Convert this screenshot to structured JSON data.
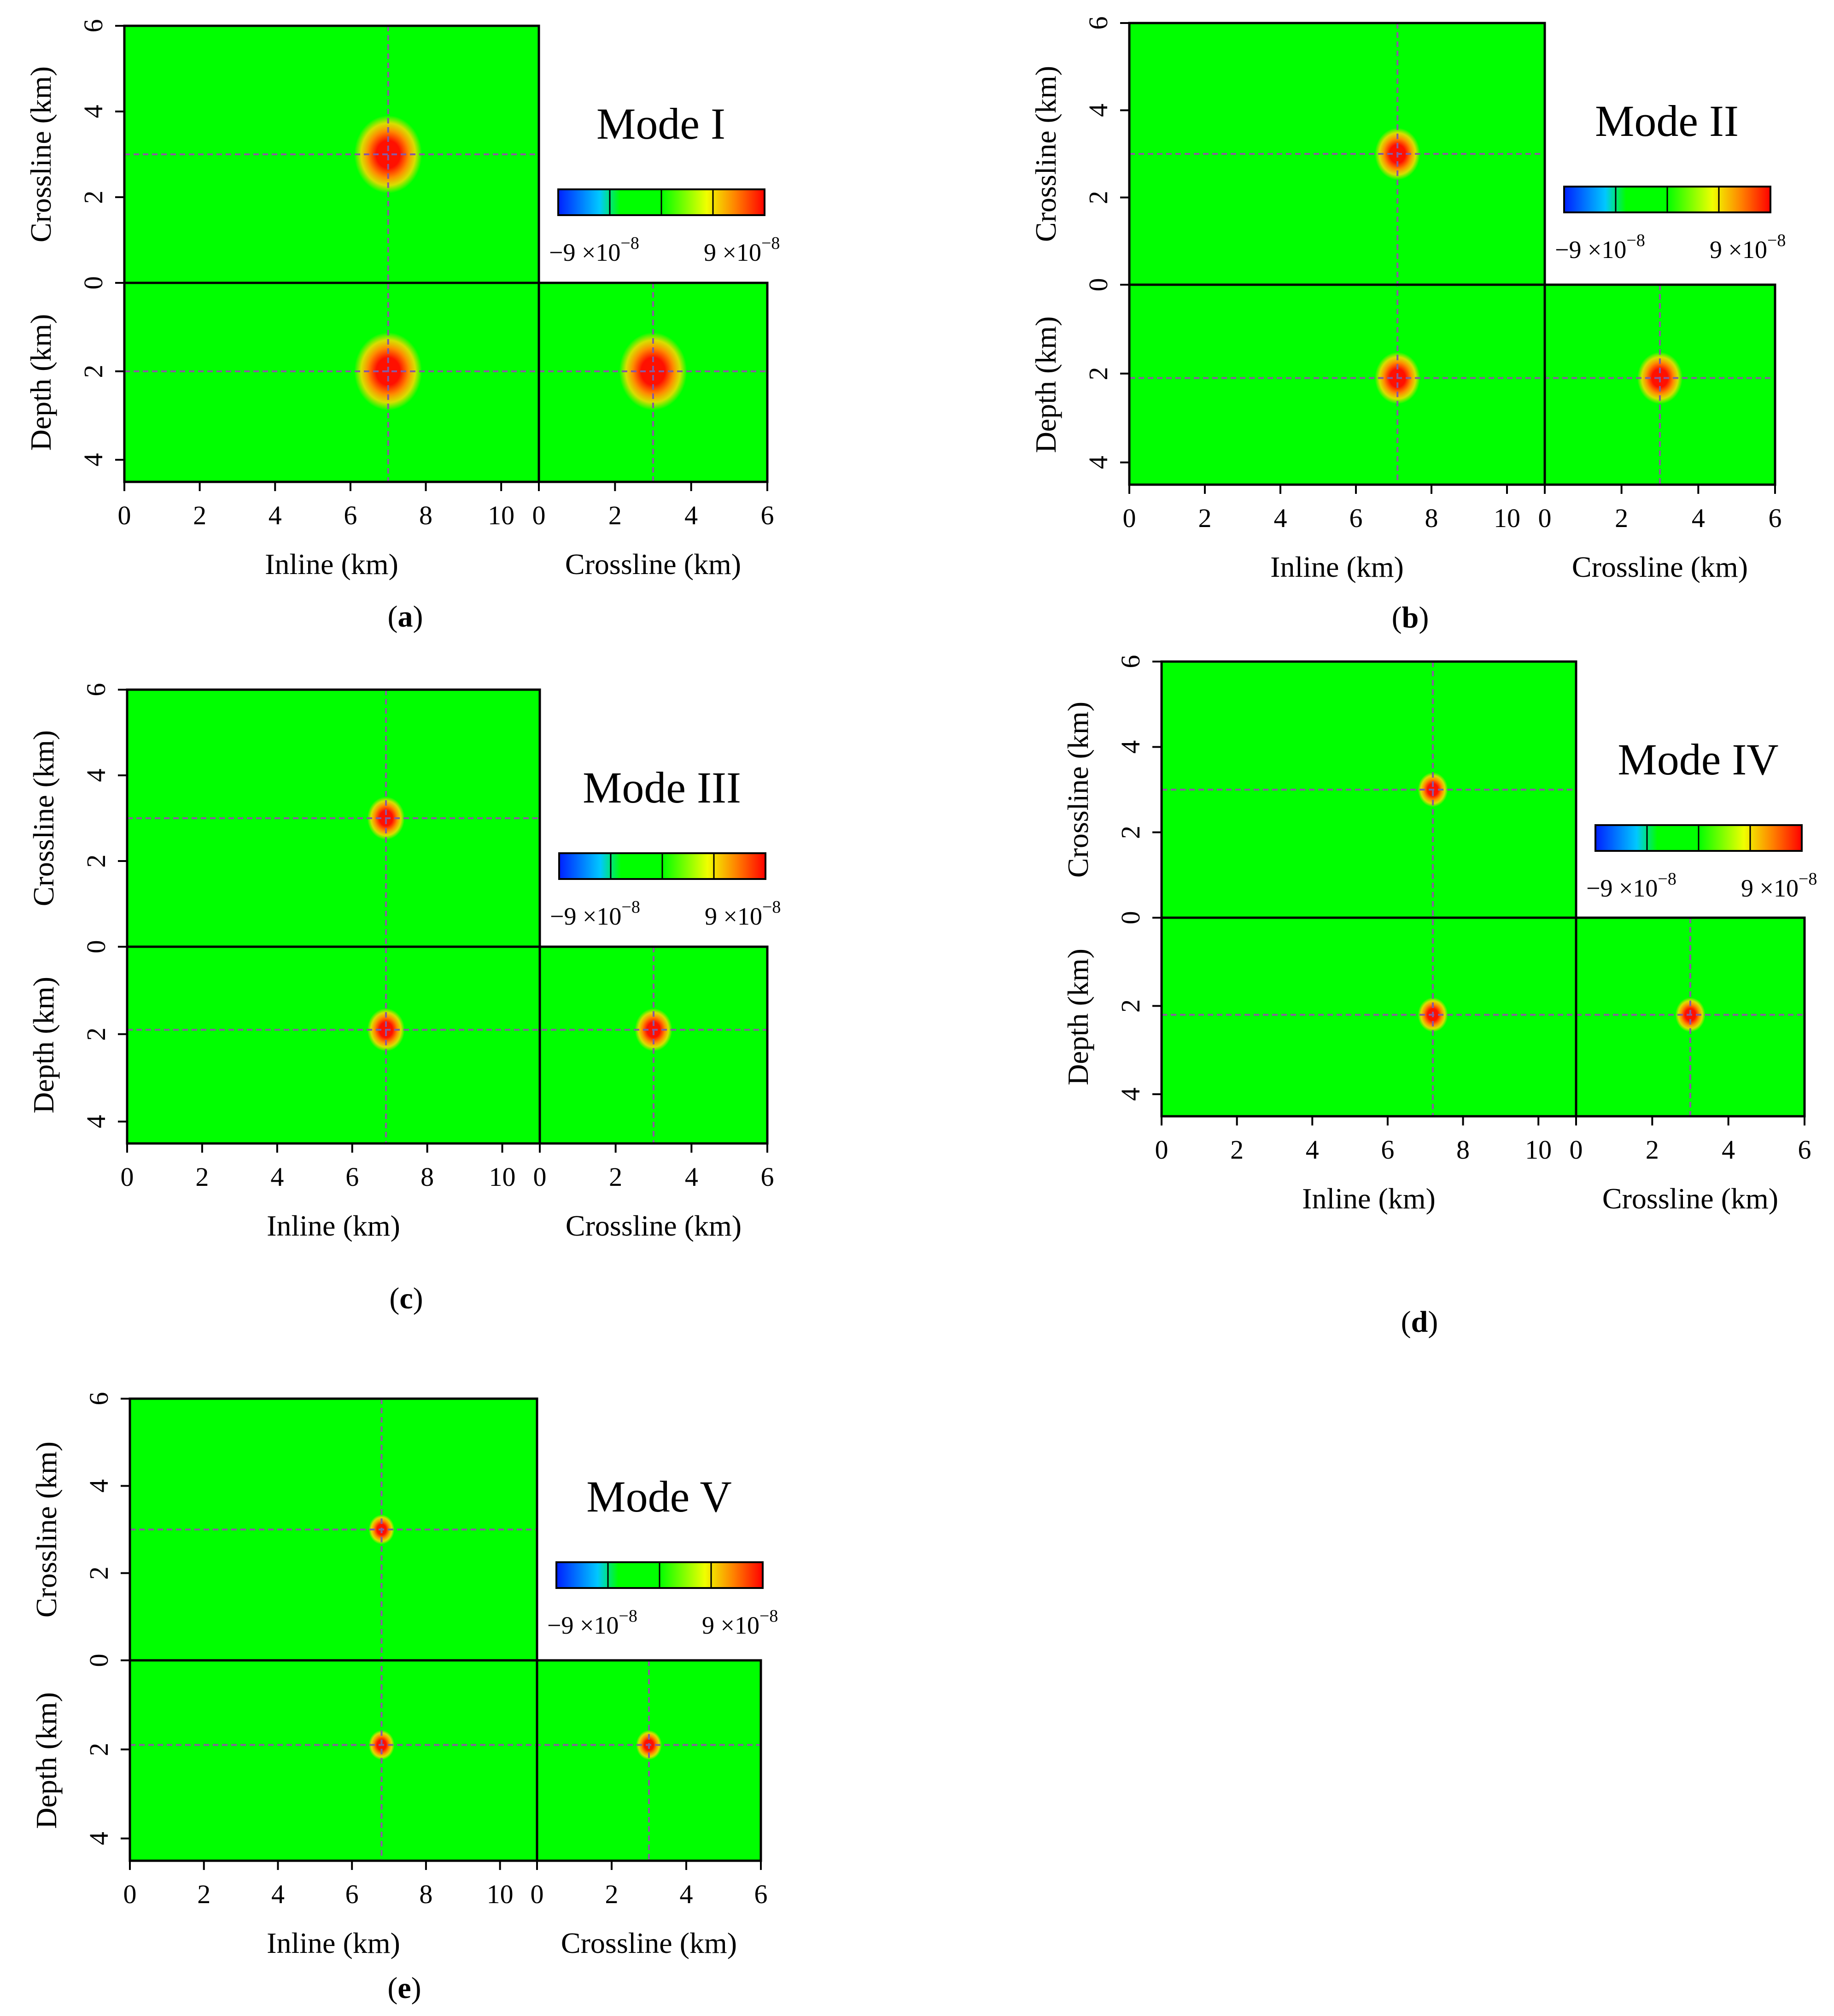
{
  "figure": {
    "colors": {
      "background_green": "#00ff00",
      "frame": "#000000",
      "crosshair": "#8a5aa0",
      "colorbar_stops": [
        "#0020ff",
        "#00c8ff",
        "#00ff00",
        "#00ff00",
        "#f0ff00",
        "#ff8000",
        "#ff0000"
      ],
      "event_glow": "#ffd800",
      "event_core": "#ff1000"
    }
  },
  "chart_data": [
    {
      "type": "heatmap",
      "panel_label": "a",
      "mode_label": "Mode I",
      "colorbar": {
        "min_label": "−9 ×10",
        "max_label": "9 ×10",
        "exponent": "−8",
        "range": [
          -9e-08,
          9e-08
        ]
      },
      "event": {
        "inline_km": 7.0,
        "crossline_km": 3.0,
        "depth_km": 2.0
      },
      "focus_radius": 0.9,
      "inline_axis": {
        "label": "Inline (km)",
        "range": [
          0,
          11
        ],
        "ticks": [
          "0",
          "2",
          "4",
          "6",
          "8",
          "10"
        ]
      },
      "crossline_axis": {
        "label": "Crossline (km)",
        "range": [
          0,
          6
        ],
        "ticks": [
          "0",
          "2",
          "4",
          "6"
        ]
      },
      "map_crossline_axis": {
        "label": "Crossline (km)",
        "range": [
          0,
          6
        ],
        "ticks": [
          "0",
          "2",
          "4",
          "6"
        ]
      },
      "depth_axis": {
        "label": "Depth (km)",
        "range": [
          0,
          4.5
        ],
        "ticks": [
          "2",
          "4"
        ]
      }
    },
    {
      "type": "heatmap",
      "panel_label": "b",
      "mode_label": "Mode II",
      "colorbar": {
        "min_label": "−9 ×10",
        "max_label": "9 ×10",
        "exponent": "−8",
        "range": [
          -9e-08,
          9e-08
        ]
      },
      "event": {
        "inline_km": 7.1,
        "crossline_km": 3.0,
        "depth_km": 2.1
      },
      "focus_radius": 0.6,
      "inline_axis": {
        "label": "Inline (km)",
        "range": [
          0,
          11
        ],
        "ticks": [
          "0",
          "2",
          "4",
          "6",
          "8",
          "10"
        ]
      },
      "crossline_axis": {
        "label": "Crossline (km)",
        "range": [
          0,
          6
        ],
        "ticks": [
          "0",
          "2",
          "4",
          "6"
        ]
      },
      "map_crossline_axis": {
        "label": "Crossline (km)",
        "range": [
          0,
          6
        ],
        "ticks": [
          "0",
          "2",
          "4",
          "6"
        ]
      },
      "depth_axis": {
        "label": "Depth (km)",
        "range": [
          0,
          4.5
        ],
        "ticks": [
          "2",
          "4"
        ]
      }
    },
    {
      "type": "heatmap",
      "panel_label": "c",
      "mode_label": "Mode III",
      "colorbar": {
        "min_label": "−9 ×10",
        "max_label": "9 ×10",
        "exponent": "−8",
        "range": [
          -9e-08,
          9e-08
        ]
      },
      "event": {
        "inline_km": 6.9,
        "crossline_km": 3.0,
        "depth_km": 1.9
      },
      "focus_radius": 0.5,
      "inline_axis": {
        "label": "Inline (km)",
        "range": [
          0,
          11
        ],
        "ticks": [
          "0",
          "2",
          "4",
          "6",
          "8",
          "10"
        ]
      },
      "crossline_axis": {
        "label": "Crossline (km)",
        "range": [
          0,
          6
        ],
        "ticks": [
          "0",
          "2",
          "4",
          "6"
        ]
      },
      "map_crossline_axis": {
        "label": "Crossline (km)",
        "range": [
          0,
          6
        ],
        "ticks": [
          "0",
          "2",
          "4",
          "6"
        ]
      },
      "depth_axis": {
        "label": "Depth (km)",
        "range": [
          0,
          4.5
        ],
        "ticks": [
          "2",
          "4"
        ]
      }
    },
    {
      "type": "heatmap",
      "panel_label": "d",
      "mode_label": "Mode IV",
      "colorbar": {
        "min_label": "−9 ×10",
        "max_label": "9 ×10",
        "exponent": "−8",
        "range": [
          -9e-08,
          9e-08
        ]
      },
      "event": {
        "inline_km": 7.2,
        "crossline_km": 3.0,
        "depth_km": 2.2
      },
      "focus_radius": 0.4,
      "inline_axis": {
        "label": "Inline (km)",
        "range": [
          0,
          11
        ],
        "ticks": [
          "0",
          "2",
          "4",
          "6",
          "8",
          "10"
        ]
      },
      "crossline_axis": {
        "label": "Crossline (km)",
        "range": [
          0,
          6
        ],
        "ticks": [
          "0",
          "2",
          "4",
          "6"
        ]
      },
      "map_crossline_axis": {
        "label": "Crossline (km)",
        "range": [
          0,
          6
        ],
        "ticks": [
          "0",
          "2",
          "4",
          "6"
        ]
      },
      "depth_axis": {
        "label": "Depth (km)",
        "range": [
          0,
          4.5
        ],
        "ticks": [
          "2",
          "4"
        ]
      }
    },
    {
      "type": "heatmap",
      "panel_label": "e",
      "mode_label": "Mode V",
      "colorbar": {
        "min_label": "−9 ×10",
        "max_label": "9 ×10",
        "exponent": "−8",
        "range": [
          -9e-08,
          9e-08
        ]
      },
      "event": {
        "inline_km": 6.8,
        "crossline_km": 3.0,
        "depth_km": 1.9
      },
      "focus_radius": 0.35,
      "inline_axis": {
        "label": "Inline (km)",
        "range": [
          0,
          11
        ],
        "ticks": [
          "0",
          "2",
          "4",
          "6",
          "8",
          "10"
        ]
      },
      "crossline_axis": {
        "label": "Crossline (km)",
        "range": [
          0,
          6
        ],
        "ticks": [
          "0",
          "2",
          "4",
          "6"
        ]
      },
      "map_crossline_axis": {
        "label": "Crossline (km)",
        "range": [
          0,
          6
        ],
        "ticks": [
          "0",
          "2",
          "4",
          "6"
        ]
      },
      "depth_axis": {
        "label": "Depth (km)",
        "range": [
          0,
          4.5
        ],
        "ticks": [
          "2",
          "4"
        ]
      }
    }
  ]
}
